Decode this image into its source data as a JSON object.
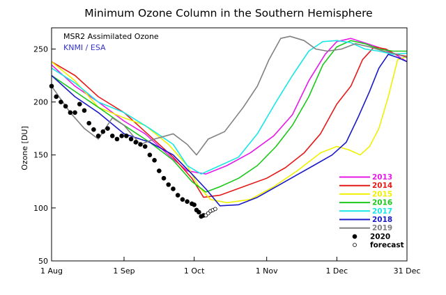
{
  "chart_data": {
    "type": "line",
    "title": "Minimum Ozone Column in the Southern Hemisphere",
    "xlabel": "",
    "ylabel": "Ozone [DU]",
    "annotations": [
      {
        "text": "MSR2 Assimilated Ozone",
        "color": "#000000"
      },
      {
        "text": "KNMI / ESA",
        "color": "#3333cc"
      }
    ],
    "x_ticks": [
      "1 Aug",
      "1 Sep",
      "1 Oct",
      "1 Nov",
      "1 Dec",
      "31 Dec"
    ],
    "x_tick_days": [
      0,
      31,
      61,
      92,
      122,
      152
    ],
    "xlim": [
      0,
      152
    ],
    "ylim": [
      50,
      270
    ],
    "y_ticks": [
      50,
      100,
      150,
      200,
      250
    ],
    "legend_position": "bottom-right",
    "series": [
      {
        "name": "2013",
        "color": "#e619e6",
        "points": [
          [
            0,
            235
          ],
          [
            10,
            215
          ],
          [
            20,
            200
          ],
          [
            31,
            182
          ],
          [
            40,
            170
          ],
          [
            50,
            150
          ],
          [
            58,
            135
          ],
          [
            66,
            132
          ],
          [
            75,
            140
          ],
          [
            85,
            152
          ],
          [
            95,
            168
          ],
          [
            103,
            188
          ],
          [
            110,
            220
          ],
          [
            117,
            245
          ],
          [
            122,
            257
          ],
          [
            128,
            260
          ],
          [
            135,
            255
          ],
          [
            142,
            250
          ],
          [
            147,
            245
          ],
          [
            152,
            238
          ]
        ]
      },
      {
        "name": "2014",
        "color": "#e61919",
        "points": [
          [
            0,
            238
          ],
          [
            10,
            225
          ],
          [
            20,
            205
          ],
          [
            31,
            190
          ],
          [
            42,
            168
          ],
          [
            52,
            148
          ],
          [
            60,
            128
          ],
          [
            65,
            110
          ],
          [
            72,
            112
          ],
          [
            82,
            120
          ],
          [
            92,
            128
          ],
          [
            100,
            138
          ],
          [
            108,
            152
          ],
          [
            115,
            170
          ],
          [
            122,
            198
          ],
          [
            128,
            215
          ],
          [
            133,
            240
          ],
          [
            138,
            252
          ],
          [
            143,
            250
          ],
          [
            147,
            245
          ],
          [
            152,
            243
          ]
        ]
      },
      {
        "name": "2015",
        "color": "#f0f000",
        "points": [
          [
            0,
            238
          ],
          [
            10,
            220
          ],
          [
            20,
            195
          ],
          [
            31,
            185
          ],
          [
            40,
            178
          ],
          [
            50,
            160
          ],
          [
            58,
            140
          ],
          [
            63,
            120
          ],
          [
            68,
            108
          ],
          [
            75,
            105
          ],
          [
            85,
            108
          ],
          [
            95,
            120
          ],
          [
            105,
            135
          ],
          [
            115,
            152
          ],
          [
            122,
            158
          ],
          [
            127,
            155
          ],
          [
            132,
            150
          ],
          [
            136,
            158
          ],
          [
            140,
            175
          ],
          [
            144,
            205
          ],
          [
            148,
            240
          ],
          [
            152,
            243
          ]
        ]
      },
      {
        "name": "2016",
        "color": "#19c819",
        "points": [
          [
            0,
            225
          ],
          [
            10,
            210
          ],
          [
            20,
            195
          ],
          [
            31,
            178
          ],
          [
            42,
            162
          ],
          [
            52,
            145
          ],
          [
            60,
            125
          ],
          [
            66,
            115
          ],
          [
            72,
            120
          ],
          [
            80,
            128
          ],
          [
            88,
            140
          ],
          [
            96,
            158
          ],
          [
            103,
            178
          ],
          [
            110,
            205
          ],
          [
            116,
            235
          ],
          [
            122,
            252
          ],
          [
            128,
            258
          ],
          [
            134,
            255
          ],
          [
            140,
            250
          ],
          [
            146,
            248
          ],
          [
            152,
            248
          ]
        ]
      },
      {
        "name": "2017",
        "color": "#19e6e6",
        "points": [
          [
            0,
            232
          ],
          [
            10,
            218
          ],
          [
            20,
            200
          ],
          [
            31,
            190
          ],
          [
            42,
            175
          ],
          [
            52,
            160
          ],
          [
            58,
            140
          ],
          [
            64,
            132
          ],
          [
            72,
            140
          ],
          [
            80,
            148
          ],
          [
            88,
            170
          ],
          [
            96,
            200
          ],
          [
            103,
            225
          ],
          [
            110,
            248
          ],
          [
            116,
            257
          ],
          [
            122,
            258
          ],
          [
            128,
            256
          ],
          [
            134,
            250
          ],
          [
            140,
            248
          ],
          [
            146,
            245
          ],
          [
            152,
            246
          ]
        ]
      },
      {
        "name": "2018",
        "color": "#1919c8",
        "points": [
          [
            0,
            225
          ],
          [
            10,
            205
          ],
          [
            20,
            190
          ],
          [
            31,
            170
          ],
          [
            42,
            162
          ],
          [
            52,
            150
          ],
          [
            60,
            132
          ],
          [
            66,
            118
          ],
          [
            72,
            102
          ],
          [
            80,
            103
          ],
          [
            88,
            110
          ],
          [
            96,
            120
          ],
          [
            104,
            130
          ],
          [
            112,
            140
          ],
          [
            120,
            150
          ],
          [
            126,
            162
          ],
          [
            131,
            185
          ],
          [
            136,
            210
          ],
          [
            140,
            232
          ],
          [
            144,
            245
          ],
          [
            148,
            242
          ],
          [
            152,
            238
          ]
        ]
      },
      {
        "name": "2019",
        "color": "#808080",
        "points": [
          [
            0,
            215
          ],
          [
            8,
            190
          ],
          [
            14,
            175
          ],
          [
            20,
            165
          ],
          [
            26,
            185
          ],
          [
            31,
            178
          ],
          [
            38,
            160
          ],
          [
            44,
            165
          ],
          [
            52,
            170
          ],
          [
            58,
            160
          ],
          [
            62,
            150
          ],
          [
            67,
            165
          ],
          [
            74,
            172
          ],
          [
            82,
            195
          ],
          [
            88,
            215
          ],
          [
            93,
            240
          ],
          [
            98,
            260
          ],
          [
            102,
            262
          ],
          [
            108,
            258
          ],
          [
            113,
            250
          ],
          [
            118,
            248
          ],
          [
            124,
            250
          ],
          [
            130,
            255
          ],
          [
            136,
            252
          ],
          [
            142,
            248
          ],
          [
            148,
            245
          ],
          [
            152,
            242
          ]
        ]
      },
      {
        "name": "2020",
        "color": "#000000",
        "marker": "dot",
        "points": [
          [
            0,
            215
          ],
          [
            2,
            205
          ],
          [
            4,
            200
          ],
          [
            6,
            196
          ],
          [
            8,
            190
          ],
          [
            10,
            190
          ],
          [
            12,
            198
          ],
          [
            14,
            192
          ],
          [
            16,
            180
          ],
          [
            18,
            174
          ],
          [
            20,
            168
          ],
          [
            22,
            172
          ],
          [
            24,
            175
          ],
          [
            26,
            168
          ],
          [
            28,
            165
          ],
          [
            30,
            168
          ],
          [
            32,
            168
          ],
          [
            34,
            165
          ],
          [
            36,
            162
          ],
          [
            38,
            160
          ],
          [
            40,
            158
          ],
          [
            42,
            150
          ],
          [
            44,
            145
          ],
          [
            46,
            135
          ],
          [
            48,
            128
          ],
          [
            50,
            122
          ],
          [
            52,
            118
          ],
          [
            54,
            112
          ],
          [
            56,
            108
          ],
          [
            58,
            106
          ],
          [
            60,
            104
          ],
          [
            61,
            103
          ],
          [
            62,
            98
          ],
          [
            63,
            96
          ],
          [
            64,
            92
          ],
          [
            65,
            93
          ]
        ]
      },
      {
        "name": "forecast",
        "color": "#000000",
        "marker": "circle",
        "points": [
          [
            66,
            93
          ],
          [
            67,
            95
          ],
          [
            68,
            97
          ],
          [
            69,
            98
          ],
          [
            70,
            99
          ]
        ]
      }
    ]
  }
}
